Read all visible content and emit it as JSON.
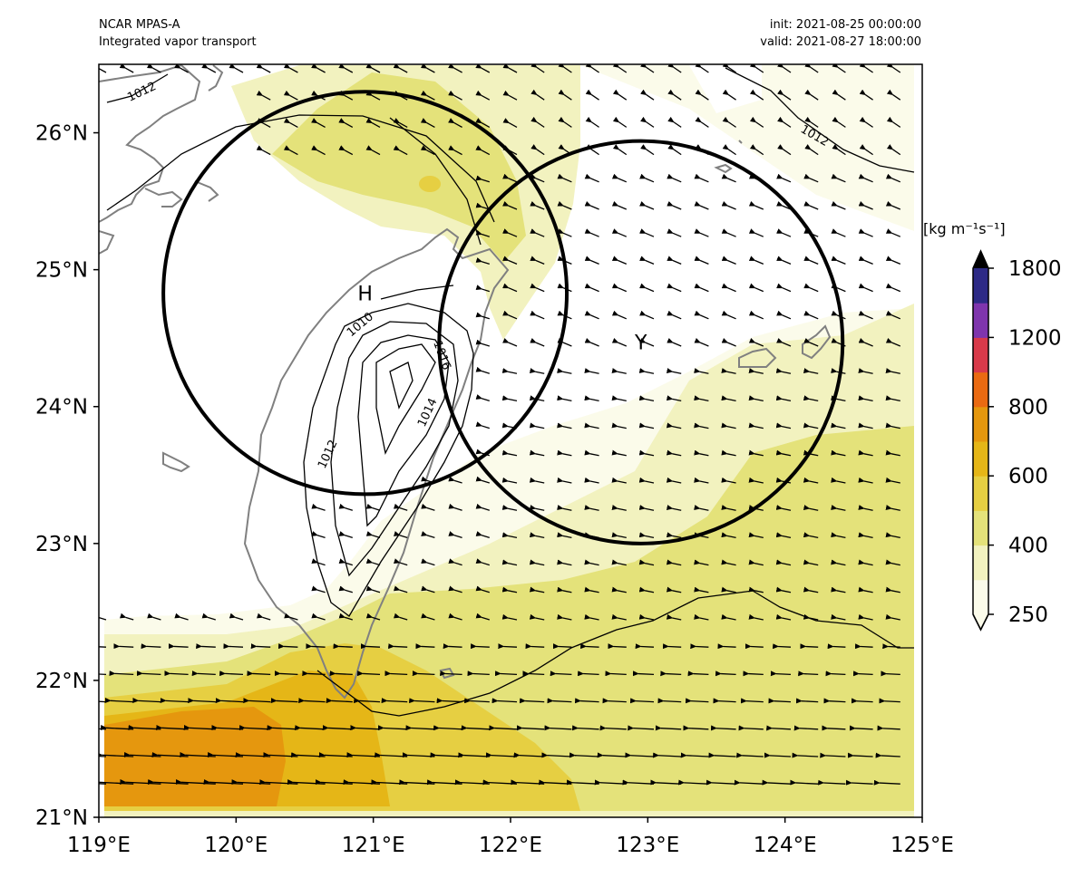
{
  "header": {
    "model": "NCAR MPAS-A",
    "product": "Integrated vapor transport",
    "init": "init: 2021-08-25 00:00:00",
    "valid": "valid: 2021-08-27 18:00:00"
  },
  "chart_data": {
    "type": "map",
    "lon_range": [
      119,
      125
    ],
    "lat_range": [
      21,
      26.5
    ],
    "x_ticks": [
      "119°E",
      "120°E",
      "121°E",
      "122°E",
      "123°E",
      "124°E",
      "125°E"
    ],
    "y_ticks": [
      "21°N",
      "22°N",
      "23°N",
      "24°N",
      "25°N",
      "26°N"
    ],
    "colorbar": {
      "unit_label": "[kg m⁻¹s⁻¹]",
      "tick_labels": [
        "250",
        "400",
        "600",
        "800",
        "1200",
        "1800"
      ],
      "levels": [
        250,
        300,
        400,
        500,
        600,
        700,
        800,
        1000,
        1200,
        1500,
        1800
      ],
      "colors": [
        "#fbfbea",
        "#f2f2bf",
        "#e4e27a",
        "#e6cf42",
        "#e5b617",
        "#e5970e",
        "#ea6a12",
        "#d83a4a",
        "#7f35ad",
        "#2d2a86"
      ],
      "extend_color": "#000000"
    },
    "pressure_contour_labels": [
      "1012",
      "1012",
      "1010",
      "1016",
      "1014",
      "1012"
    ],
    "circles": [
      {
        "label": "H",
        "center_lon": 120.94,
        "center_lat": 24.83,
        "radius_deg": 1.47
      },
      {
        "label": "Y",
        "center_lon": 122.95,
        "center_lat": 24.47,
        "radius_deg": 1.47
      }
    ]
  }
}
